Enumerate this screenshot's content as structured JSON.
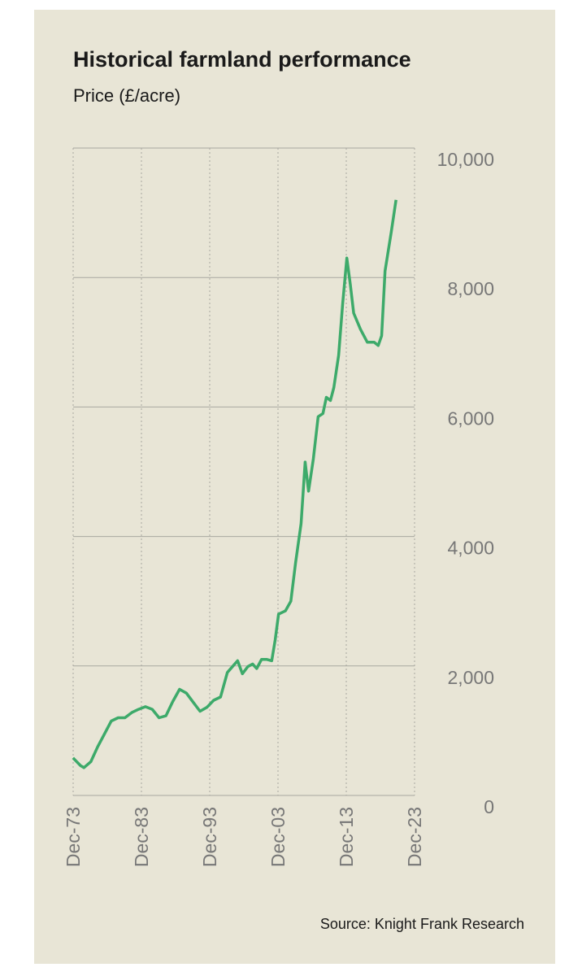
{
  "chart_data": {
    "type": "line",
    "title": "Historical farmland performance",
    "subtitle": "Price (£/acre)",
    "source": "Source: Knight Frank Research",
    "x": [
      1973.9,
      1975.0,
      1975.5,
      1976.5,
      1977.5,
      1978.5,
      1979.5,
      1980.5,
      1981.5,
      1982.5,
      1983.5,
      1984.5,
      1985.5,
      1986.5,
      1987.5,
      1988.5,
      1989.5,
      1990.5,
      1991.5,
      1992.5,
      1993.5,
      1994.5,
      1995.5,
      1996.5,
      1997.5,
      1998.0,
      1998.7,
      1999.5,
      2000.2,
      2000.8,
      2001.5,
      2002.3,
      2003.0,
      2003.5,
      2004.0,
      2005.0,
      2005.8,
      2006.5,
      2007.3,
      2007.9,
      2008.4,
      2009.1,
      2009.8,
      2010.5,
      2011.0,
      2011.6,
      2012.1,
      2012.8,
      2013.4,
      2014.0,
      2014.5,
      2015.0,
      2016.0,
      2017.0,
      2018.0,
      2018.6,
      2019.1,
      2019.6,
      2020.5,
      2021.2
    ],
    "series": [
      {
        "name": "Price",
        "color": "#3daa6a",
        "values": [
          580,
          460,
          430,
          520,
          750,
          950,
          1150,
          1200,
          1200,
          1280,
          1330,
          1370,
          1330,
          1200,
          1230,
          1450,
          1640,
          1580,
          1440,
          1300,
          1360,
          1470,
          1520,
          1900,
          2020,
          2080,
          1880,
          1990,
          2030,
          1960,
          2100,
          2100,
          2080,
          2400,
          2800,
          2850,
          3000,
          3600,
          4200,
          5150,
          4700,
          5200,
          5850,
          5900,
          6150,
          6100,
          6300,
          6800,
          7600,
          8300,
          7900,
          7450,
          7200,
          7000,
          7000,
          6950,
          7100,
          8100,
          8700,
          9200
        ]
      }
    ],
    "xlim": [
      1973.92,
      2023.92
    ],
    "xticks": [
      {
        "value": 1973.92,
        "label": "Dec-73"
      },
      {
        "value": 1983.92,
        "label": "Dec-83"
      },
      {
        "value": 1993.92,
        "label": "Dec-93"
      },
      {
        "value": 2003.92,
        "label": "Dec-03"
      },
      {
        "value": 2013.92,
        "label": "Dec-13"
      },
      {
        "value": 2023.92,
        "label": "Dec-23"
      }
    ],
    "ylim": [
      0,
      10000
    ],
    "yticks": [
      0,
      {
        "value": 2000,
        "label": "2,000"
      },
      {
        "value": 4000,
        "label": "4,000"
      },
      {
        "value": 6000,
        "label": "6,000"
      },
      {
        "value": 8000,
        "label": "8,000"
      },
      {
        "value": 10000,
        "label": "10,000"
      }
    ],
    "grid": true
  }
}
